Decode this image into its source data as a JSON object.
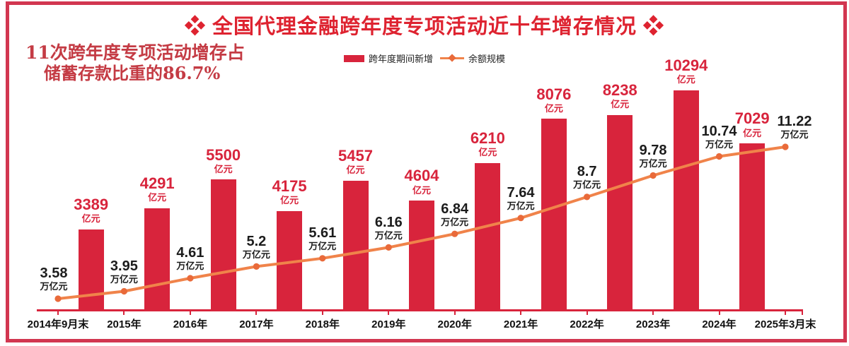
{
  "title": "❖ 全国代理金融跨年度专项活动近十年增存情况 ❖",
  "annotation": {
    "line1": "11次跨年度专项活动增存占",
    "line2": "储蓄存款比重的86.7%"
  },
  "legend": {
    "bar_label": "跨年度期间新增",
    "line_label": "余额规模"
  },
  "colors": {
    "bar_red": "#d8243c",
    "title_red": "#de2330",
    "frame_red": "#d23650",
    "annotation_red": "#c43b44",
    "line_orange": "#f0834a",
    "marker_orange": "#e96a3a",
    "text_dark": "#1c1c1c"
  },
  "chart_data": {
    "type": "bar+line combo",
    "title": "全国代理金融跨年度专项活动近十年增存情况",
    "x_labels": [
      "2014年9月末",
      "2015年",
      "2016年",
      "2017年",
      "2018年",
      "2019年",
      "2020年",
      "2021年",
      "2022年",
      "2023年",
      "2024年",
      "2025年3月末"
    ],
    "grid": false,
    "legend_position": "top-center",
    "bar_series": {
      "name": "跨年度期间新增",
      "unit": "亿元",
      "note": "each bar spans the interval between two consecutive x points (11 bars)",
      "values": [
        3389,
        4291,
        5500,
        4175,
        5457,
        4604,
        6210,
        8076,
        8238,
        10294,
        7029
      ]
    },
    "line_series": {
      "name": "余额规模",
      "unit": "万亿元",
      "values": [
        3.58,
        3.95,
        4.61,
        5.2,
        5.61,
        6.16,
        6.84,
        7.64,
        8.7,
        9.78,
        10.74,
        11.22
      ]
    }
  }
}
